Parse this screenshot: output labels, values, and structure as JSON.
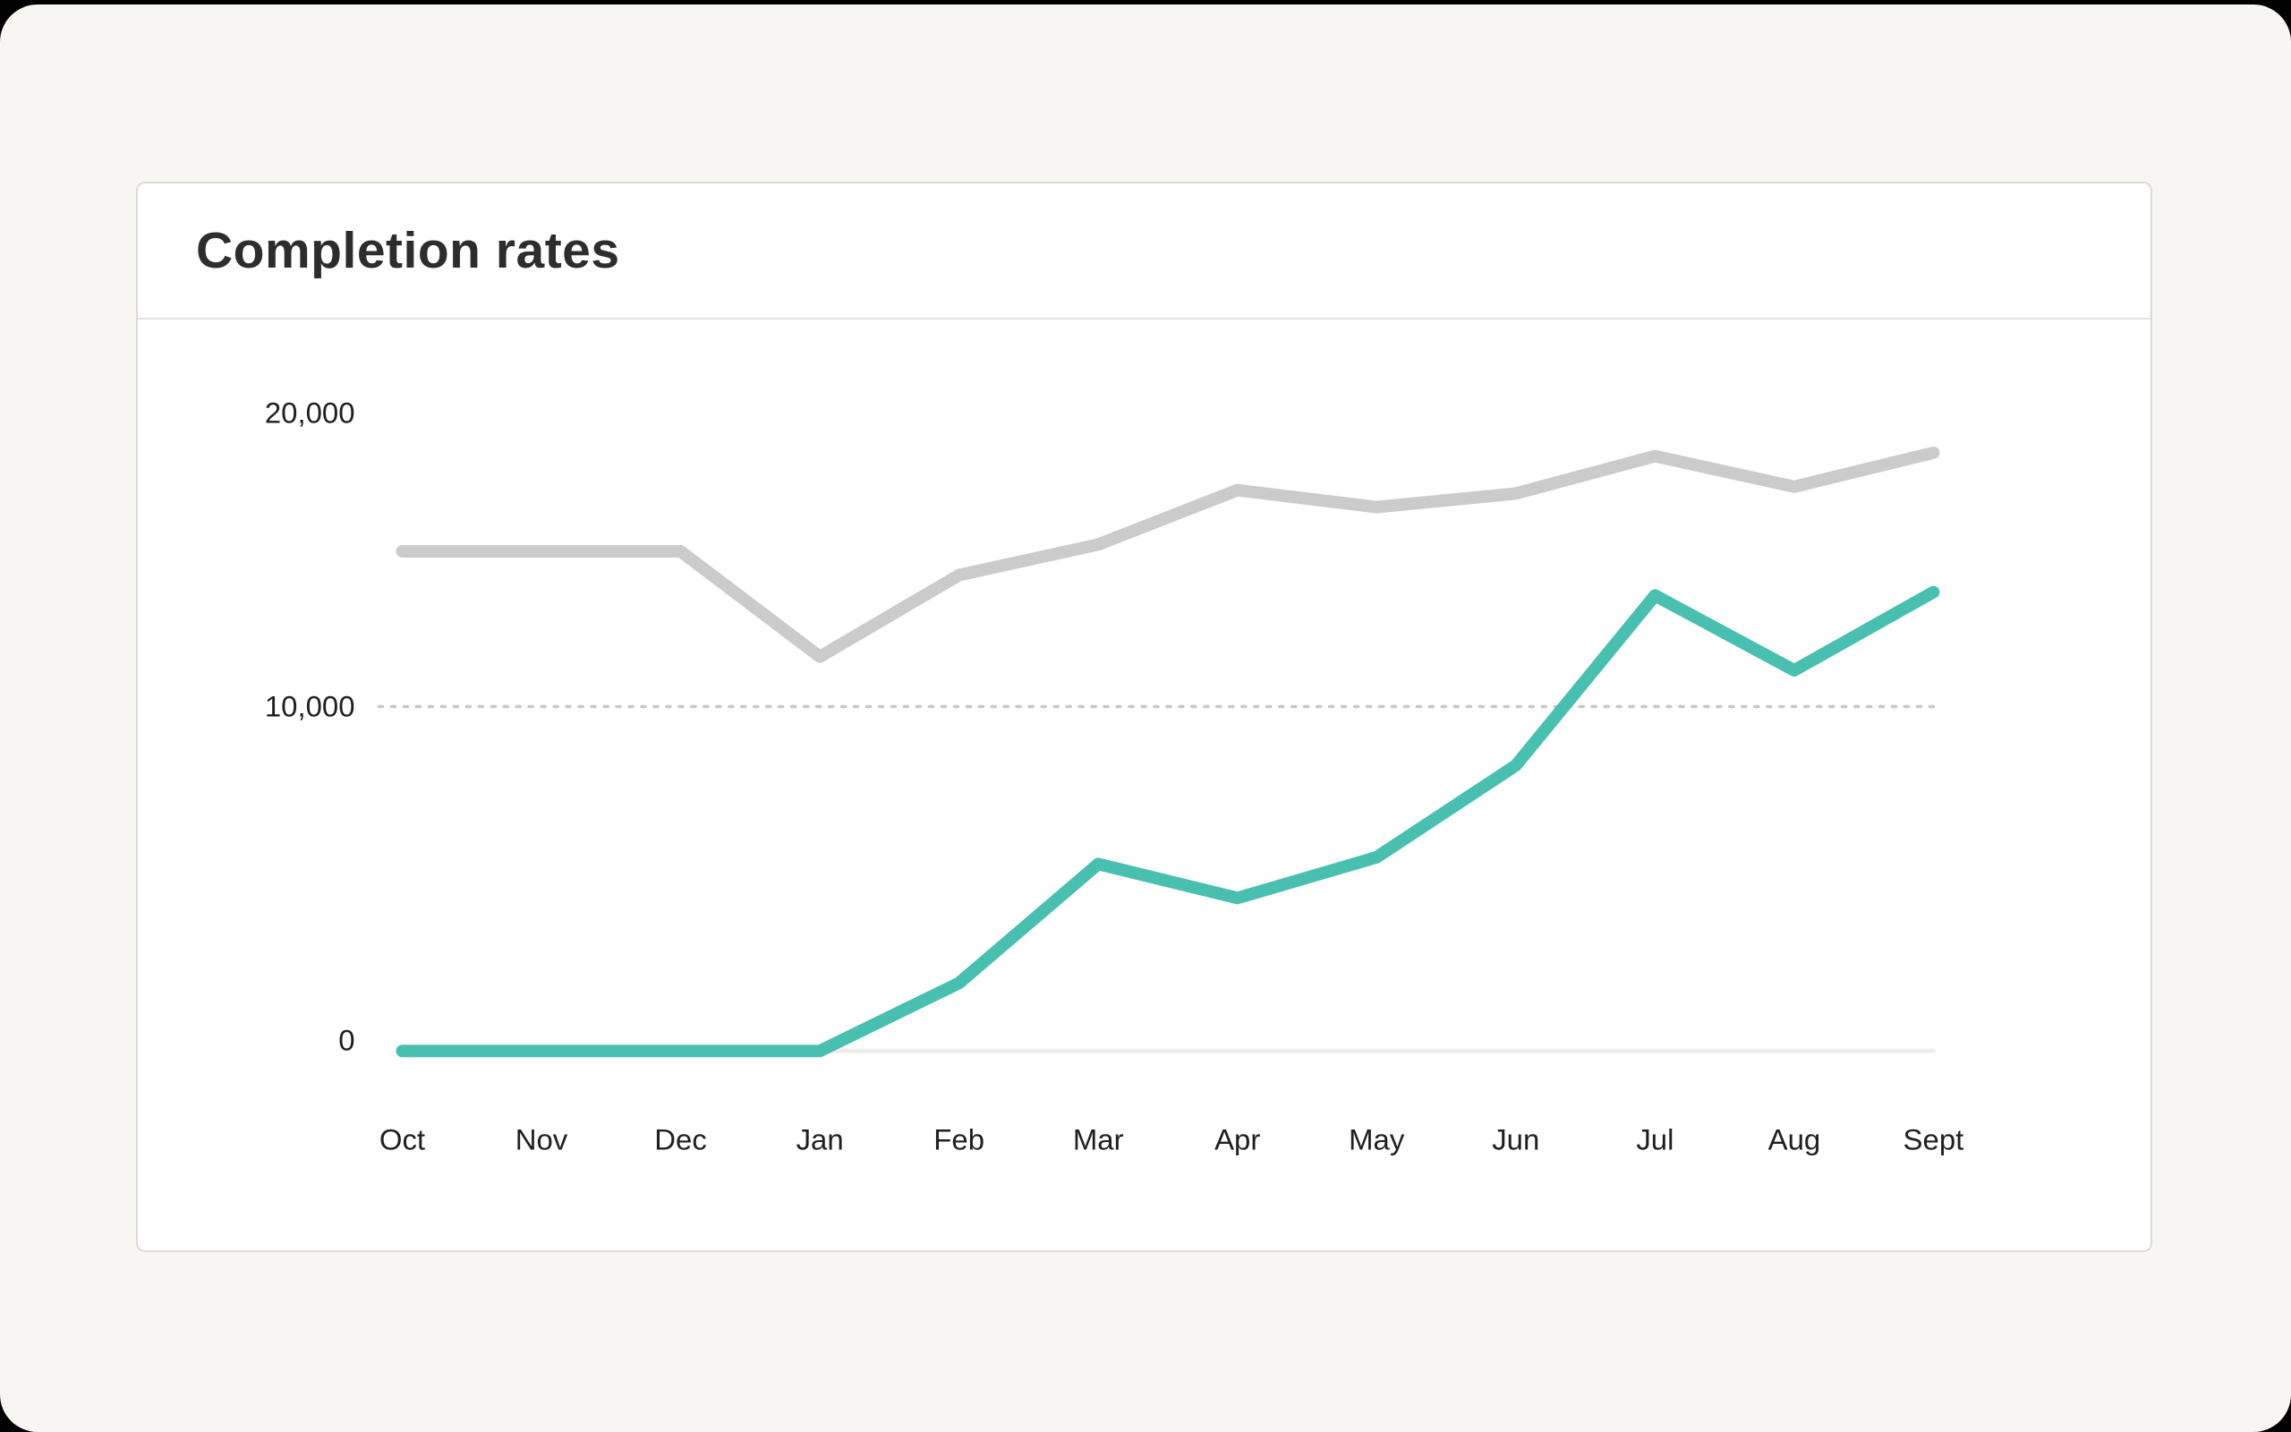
{
  "card": {
    "title": "Completion rates"
  },
  "colors": {
    "background": "#F7F6F3",
    "frame": "#000000",
    "card_background": "#FFFFFF",
    "card_border": "#DBDBD7",
    "teal_line": "#49BFAF",
    "gray_line": "#CBCBCB",
    "baseline": "#EDEDEA",
    "dotted_gridline": "#C8C8C6",
    "text": "#1F1F1F"
  },
  "chart_data": {
    "type": "line",
    "title": "Completion rates",
    "categories": [
      "Oct",
      "Nov",
      "Dec",
      "Jan",
      "Feb",
      "Mar",
      "Apr",
      "May",
      "Jun",
      "Jul",
      "Aug",
      "Sept"
    ],
    "series": [
      {
        "name": "series-gray",
        "color": "#CBCBCB",
        "values": [
          14700,
          14700,
          14700,
          11600,
          14000,
          14900,
          16500,
          16000,
          16400,
          17500,
          16600,
          17600
        ]
      },
      {
        "name": "series-teal",
        "color": "#49BFAF",
        "values": [
          0,
          0,
          0,
          0,
          2000,
          5500,
          4500,
          5700,
          8400,
          13400,
          11200,
          13500
        ]
      }
    ],
    "y_ticks": [
      {
        "value": 0,
        "label": "0"
      },
      {
        "value": 10000,
        "label": "10,000"
      },
      {
        "value": 20000,
        "label": "20,000"
      }
    ],
    "ylim": [
      0,
      20000
    ],
    "gridline": {
      "value": 10000,
      "style": "dotted"
    },
    "legend": "none",
    "xlabel": "",
    "ylabel": ""
  }
}
